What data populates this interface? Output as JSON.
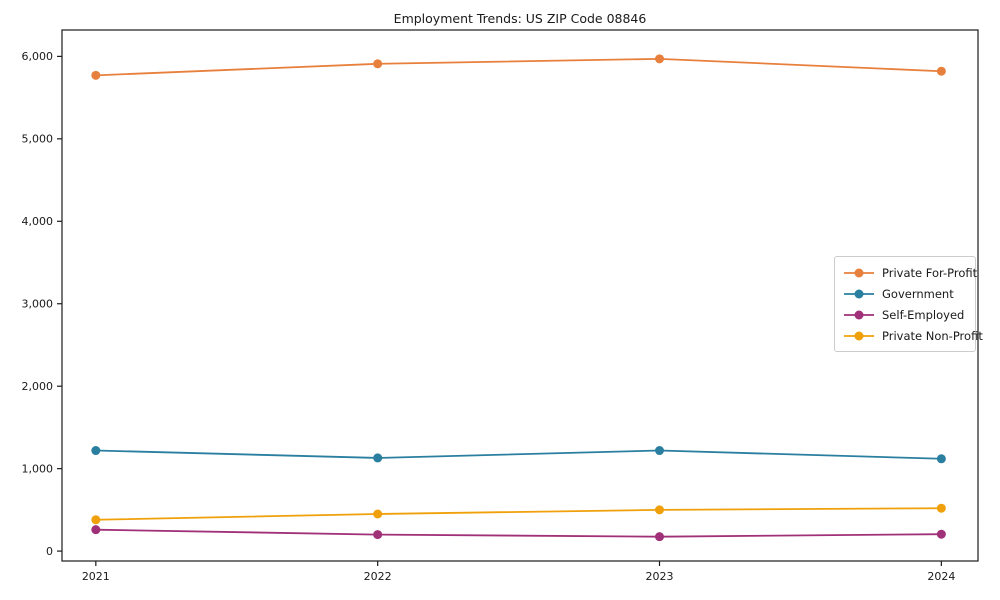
{
  "chart_data": {
    "type": "line",
    "title": "Employment Trends: US ZIP Code 08846",
    "x": [
      2021,
      2022,
      2023,
      2024
    ],
    "xtick_labels": [
      "2021",
      "2022",
      "2023",
      "2024"
    ],
    "yticks": [
      0,
      1000,
      2000,
      3000,
      4000,
      5000,
      6000
    ],
    "ytick_labels": [
      "0",
      "1,000",
      "2,000",
      "3,000",
      "4,000",
      "5,000",
      "6,000"
    ],
    "xlim": [
      2020.88,
      2024.13
    ],
    "ylim": [
      -120,
      6320
    ],
    "grid": false,
    "legend_position": "right-center",
    "marker": "circle",
    "axis_color": "#1a1a1a",
    "series": [
      {
        "name": "Private For-Profit",
        "color": "#E8803D",
        "values": [
          5770,
          5910,
          5970,
          5820
        ]
      },
      {
        "name": "Government",
        "color": "#2A7FA0",
        "values": [
          1220,
          1130,
          1220,
          1120
        ]
      },
      {
        "name": "Self-Employed",
        "color": "#A03078",
        "values": [
          260,
          200,
          175,
          205
        ]
      },
      {
        "name": "Private Non-Profit",
        "color": "#F0A00A",
        "values": [
          380,
          450,
          500,
          520
        ]
      }
    ]
  }
}
